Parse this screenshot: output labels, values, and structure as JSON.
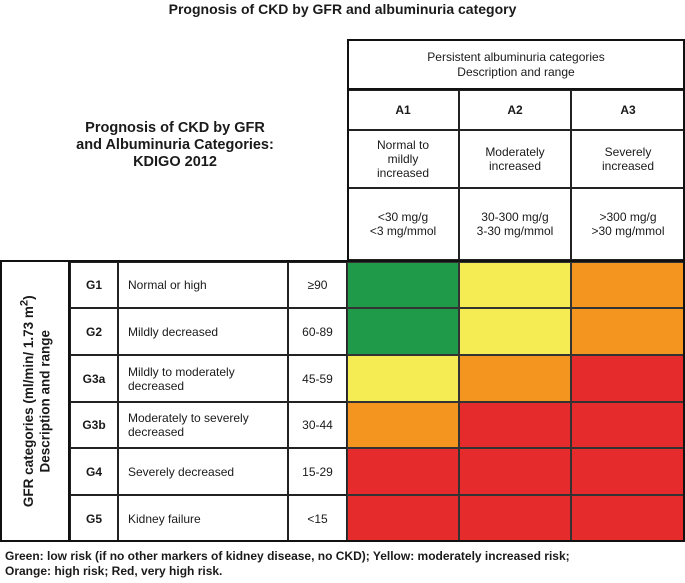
{
  "title": "Prognosis of CKD by GFR and albuminuria category",
  "side_title": [
    "Prognosis of CKD by GFR",
    "and Albuminuria Categories:",
    "KDIGO 2012"
  ],
  "albuminuria_header": [
    "Persistent albuminuria categories",
    "Description and range"
  ],
  "albuminuria_categories": [
    {
      "code": "A1",
      "description": [
        "Normal to",
        "mildly",
        "increased"
      ],
      "range": [
        "<30 mg/g",
        "<3 mg/mmol"
      ]
    },
    {
      "code": "A2",
      "description": [
        "Moderately",
        "increased"
      ],
      "range": [
        "30-300 mg/g",
        "3-30 mg/mmol"
      ]
    },
    {
      "code": "A3",
      "description": [
        "Severely",
        "increased"
      ],
      "range": [
        ">300 mg/g",
        ">30 mg/mmol"
      ]
    }
  ],
  "gfr_header": {
    "line1": "GFR categories (ml/min/ 1.73 m",
    "sup": "2",
    "line1_end": ")",
    "line2": "Description and range"
  },
  "gfr_categories": [
    {
      "code": "G1",
      "description": "Normal or high",
      "range": "≥90",
      "risk": [
        "green",
        "yellow",
        "orange"
      ]
    },
    {
      "code": "G2",
      "description": "Mildly decreased",
      "range": "60-89",
      "risk": [
        "green",
        "yellow",
        "orange"
      ]
    },
    {
      "code": "G3a",
      "description": "Mildly to moderately decreased",
      "range": "45-59",
      "risk": [
        "yellow",
        "orange",
        "red"
      ]
    },
    {
      "code": "G3b",
      "description": "Moderately to severely decreased",
      "range": "30-44",
      "risk": [
        "orange",
        "red",
        "red"
      ]
    },
    {
      "code": "G4",
      "description": "Severely decreased",
      "range": "15-29",
      "risk": [
        "red",
        "red",
        "red"
      ]
    },
    {
      "code": "G5",
      "description": "Kidney failure",
      "range": "<15",
      "risk": [
        "red",
        "red",
        "red"
      ]
    }
  ],
  "risk_colors": {
    "green": "#1f9a48",
    "yellow": "#f4ec52",
    "orange": "#f4951f",
    "red": "#e52b2b"
  },
  "legend": [
    "Green: low risk (if no other markers of kidney disease, no CKD); Yellow: moderately increased risk;",
    "Orange: high risk; Red, very high risk."
  ]
}
